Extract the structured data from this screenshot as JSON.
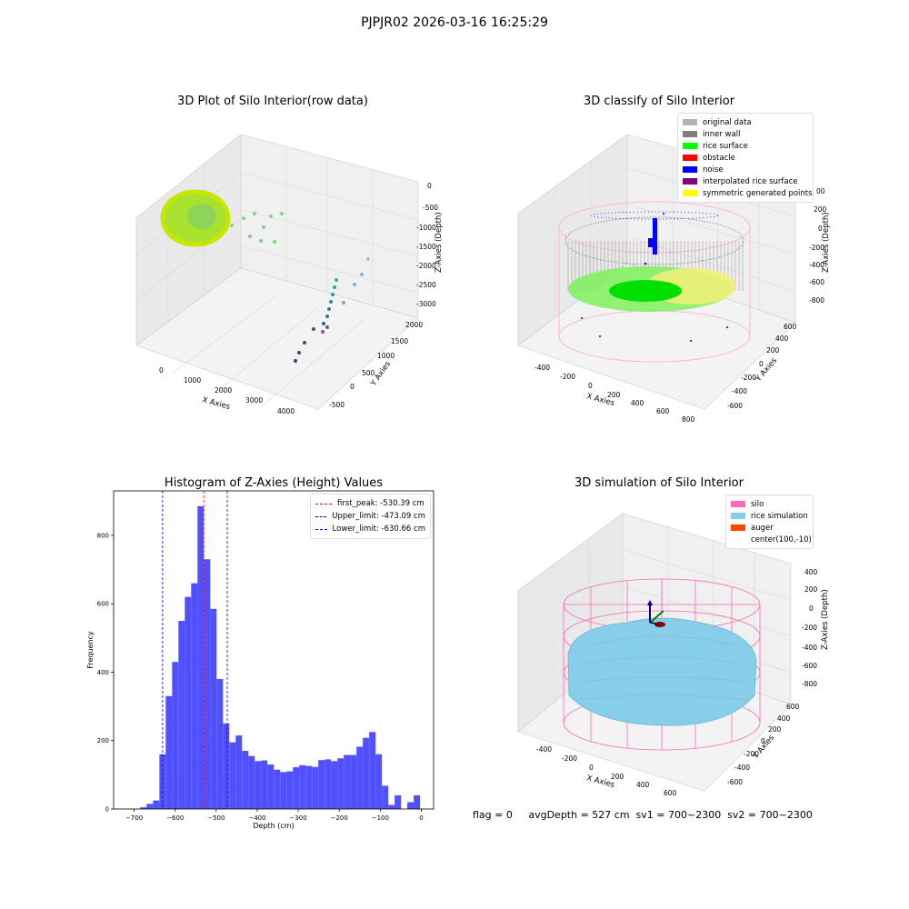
{
  "figure": {
    "suptitle": "PJPJR02 2026-03-16 16:25:29",
    "footer": "flag = 0     avgDepth = 527 cm  sv1 = 700~2300  sv2 = 700~2300"
  },
  "panels": {
    "raw": {
      "title": "3D Plot of Silo Interior(row data)",
      "xlabel": "X Axies",
      "ylabel": "Y Axies",
      "zlabel": "Z-Axies (Depth)",
      "xticks": [
        "0",
        "1000",
        "2000",
        "3000",
        "4000"
      ],
      "yticks": [
        "-500",
        "0",
        "500",
        "1000",
        "1500",
        "2000"
      ],
      "zticks": [
        "0",
        "-500",
        "-1000",
        "-1500",
        "-2000",
        "-2500",
        "-3000"
      ]
    },
    "classify": {
      "title": "3D classify of Silo Interior",
      "xlabel": "X Axies",
      "ylabel": "Y Axies",
      "zlabel": "Z-Axies (Depth)",
      "xticks": [
        "-400",
        "-200",
        "0",
        "200",
        "400",
        "600",
        "800"
      ],
      "yticks": [
        "-600",
        "-400",
        "-200",
        "0",
        "200",
        "400",
        "600"
      ],
      "zticks": [
        "200",
        "0",
        "-200",
        "-400",
        "-600",
        "-800"
      ],
      "legend": [
        {
          "label": "original data",
          "color": "#b3b3b3"
        },
        {
          "label": "inner wall",
          "color": "#808080"
        },
        {
          "label": "rice surface",
          "color": "#00ff00"
        },
        {
          "label": "obstacle",
          "color": "#ff0000"
        },
        {
          "label": "noise",
          "color": "#0000ff"
        },
        {
          "label": "interpolated rice surface",
          "color": "#800080"
        },
        {
          "label": "symmetric generated points",
          "color": "#ffff00"
        }
      ],
      "z_tick_fragment": "00"
    },
    "simulation": {
      "title": "3D simulation of Silo Interior",
      "xlabel": "X Axies",
      "ylabel": "Y Axies",
      "zlabel": "Z-Axies (Depth)",
      "xticks": [
        "-400",
        "-200",
        "0",
        "200",
        "400",
        "600"
      ],
      "yticks": [
        "-600",
        "-400",
        "-200",
        "0",
        "200",
        "400",
        "600"
      ],
      "zticks": [
        "400",
        "200",
        "0",
        "-200",
        "-400",
        "-600",
        "-800"
      ],
      "legend": [
        {
          "label": "silo",
          "color": "#ff69b4"
        },
        {
          "label": "rice simulation",
          "color": "#87ceeb"
        },
        {
          "label": "auger",
          "color": "#ff4500"
        },
        {
          "label": "center(100,-10)",
          "color": "#ffffff"
        }
      ]
    }
  },
  "chart_data": {
    "type": "bar",
    "title": "Histogram of Z-Axies (Height) Values",
    "xlabel": "Depth (cm)",
    "ylabel": "Frequency",
    "xlim": [
      -750,
      30
    ],
    "ylim": [
      0,
      930
    ],
    "xticks": [
      -700,
      -600,
      -500,
      -400,
      -300,
      -200,
      -100,
      0
    ],
    "yticks": [
      0,
      200,
      400,
      600,
      800
    ],
    "bin_width": 15.5,
    "bin_start": -716,
    "values": [
      0,
      0,
      5,
      15,
      25,
      160,
      330,
      430,
      550,
      620,
      660,
      885,
      730,
      585,
      380,
      250,
      195,
      215,
      170,
      155,
      140,
      142,
      130,
      115,
      108,
      110,
      122,
      128,
      126,
      123,
      143,
      145,
      140,
      148,
      158,
      158,
      182,
      208,
      225,
      160,
      68,
      12,
      40,
      0,
      20,
      40
    ],
    "vlines": [
      {
        "label": "first_peak: -530.39 cm",
        "x": -530.39,
        "color": "#ff0000"
      },
      {
        "label": "Upper_limit: -473.09 cm",
        "x": -473.09,
        "color": "#0000ff"
      },
      {
        "label": "Lower_limit: -630.66 cm",
        "x": -630.66,
        "color": "#0000ff"
      }
    ],
    "bar_color": "#5050ff",
    "grid": false,
    "legend_position": "top-right"
  }
}
